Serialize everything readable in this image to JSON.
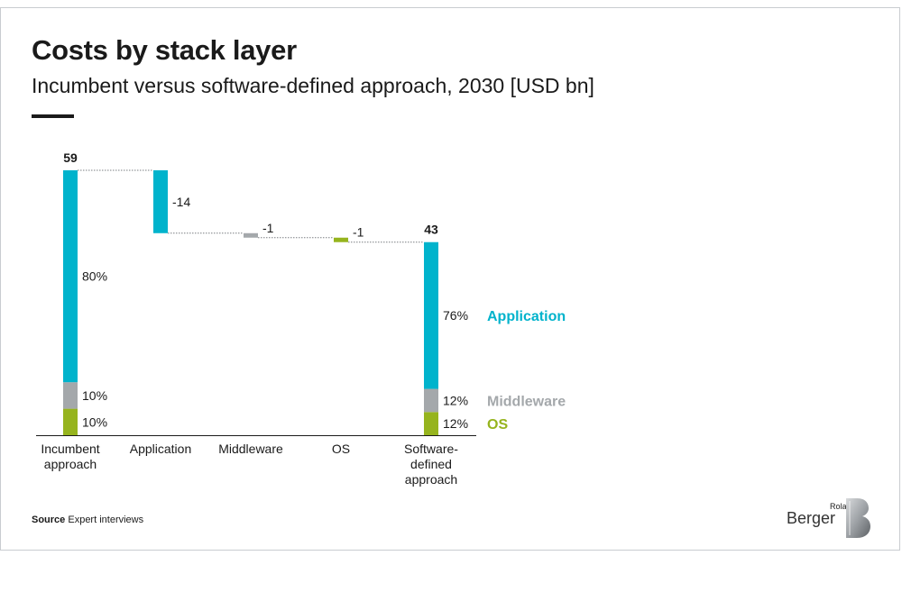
{
  "header": {
    "title": "Costs by stack layer",
    "subtitle": "Incumbent versus software-defined approach, 2030 [USD bn]"
  },
  "footer": {
    "source_label": "Source",
    "source_text": "Expert interviews"
  },
  "logo": {
    "top": "Roland",
    "bottom": "Berger"
  },
  "colors": {
    "application": "#00b3cc",
    "middleware": "#a4a8ab",
    "os": "#96b41e",
    "text": "#1a1a1a"
  },
  "chart_data": {
    "type": "waterfall",
    "ylim": [
      0,
      59
    ],
    "categories": [
      "Incumbent\napproach",
      "Application",
      "Middleware",
      "OS",
      "Software-\ndefined\napproach"
    ],
    "bars": [
      {
        "kind": "total",
        "total": 59,
        "segments": [
          {
            "layer": "OS",
            "share": 10,
            "label": "10%"
          },
          {
            "layer": "Middleware",
            "share": 10,
            "label": "10%"
          },
          {
            "layer": "Application",
            "share": 80,
            "label": "80%"
          }
        ]
      },
      {
        "kind": "delta",
        "value": -14,
        "label": "-14",
        "layer": "Application"
      },
      {
        "kind": "delta",
        "value": -1,
        "label": "-1",
        "layer": "Middleware"
      },
      {
        "kind": "delta",
        "value": -1,
        "label": "-1",
        "layer": "OS"
      },
      {
        "kind": "total",
        "total": 43,
        "segments": [
          {
            "layer": "OS",
            "share": 12,
            "label": "12%"
          },
          {
            "layer": "Middleware",
            "share": 12,
            "label": "12%"
          },
          {
            "layer": "Application",
            "share": 76,
            "label": "76%"
          }
        ]
      }
    ],
    "legend": [
      {
        "name": "Application",
        "layer": "Application"
      },
      {
        "name": "Middleware",
        "layer": "Middleware"
      },
      {
        "name": "OS",
        "layer": "OS"
      }
    ]
  }
}
